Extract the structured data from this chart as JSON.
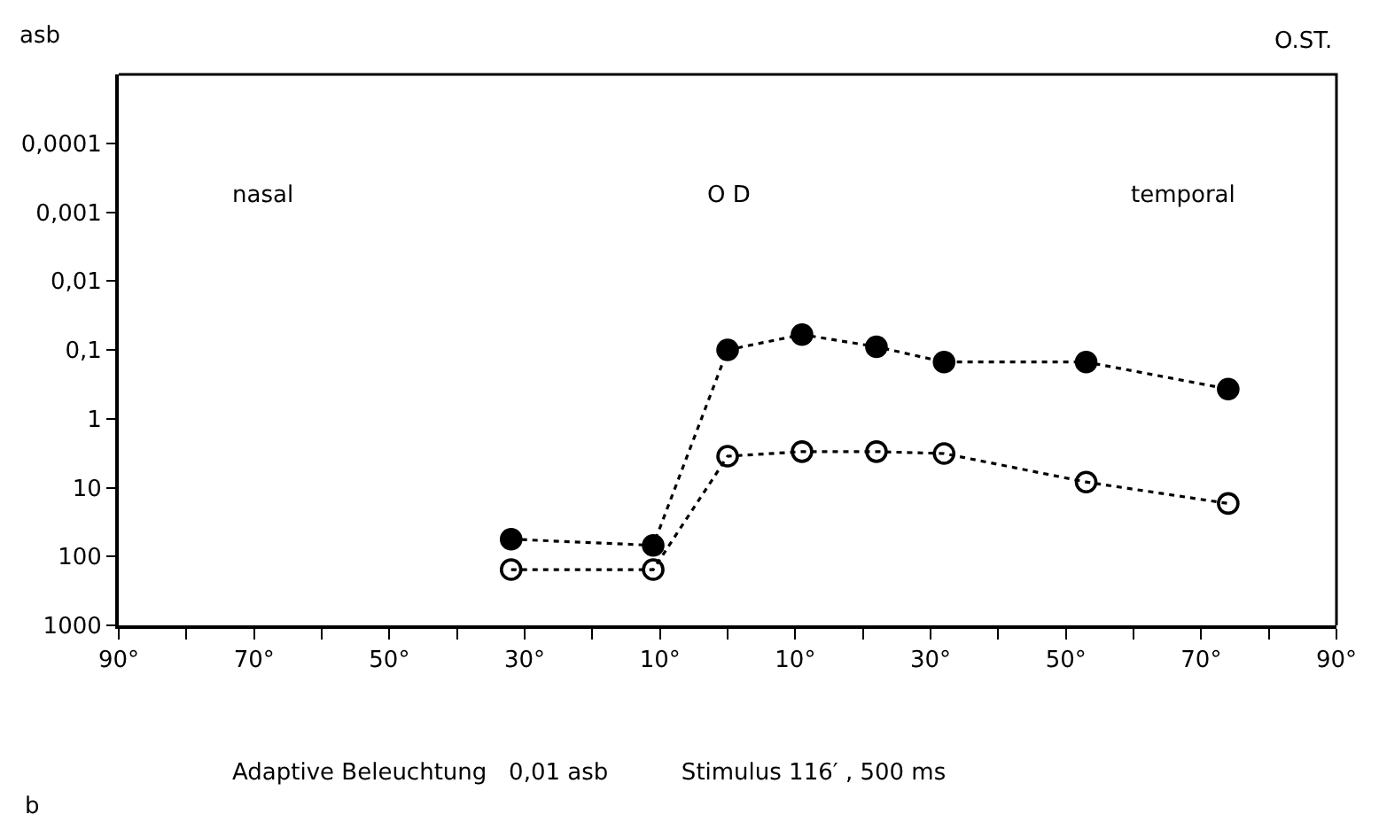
{
  "chart_data": {
    "type": "line",
    "ylabel": "asb",
    "annotations": [
      "O.ST.",
      "nasal",
      "O D",
      "temporal",
      "Adaptive Beleuchtung   0,01 asb          Stimulus 116′ , 500 ms",
      "b"
    ],
    "log": "y",
    "line_style": "dotted",
    "xlim": [
      -90,
      90
    ],
    "xticks": [
      {
        "value": -90,
        "label": "90°"
      },
      {
        "value": -80,
        "label": null
      },
      {
        "value": -70,
        "label": "70°"
      },
      {
        "value": -60,
        "label": null
      },
      {
        "value": -50,
        "label": "50°"
      },
      {
        "value": -40,
        "label": null
      },
      {
        "value": -30,
        "label": "30°"
      },
      {
        "value": -20,
        "label": null
      },
      {
        "value": -10,
        "label": "10°"
      },
      {
        "value": 0,
        "label": null
      },
      {
        "value": 10,
        "label": "10°"
      },
      {
        "value": 20,
        "label": null
      },
      {
        "value": 30,
        "label": "30°"
      },
      {
        "value": 40,
        "label": null
      },
      {
        "value": 50,
        "label": "50°"
      },
      {
        "value": 60,
        "label": null
      },
      {
        "value": 70,
        "label": "70°"
      },
      {
        "value": 80,
        "label": null
      },
      {
        "value": 90,
        "label": "90°"
      }
    ],
    "ylim": [
      1000,
      1e-05
    ],
    "yticks": [
      {
        "value": 0.0001,
        "label": "0,0001"
      },
      {
        "value": 0.001,
        "label": "0,001"
      },
      {
        "value": 0.01,
        "label": "0,01"
      },
      {
        "value": 0.1,
        "label": "0,1"
      },
      1,
      10,
      100,
      1000
    ],
    "x": [
      -32,
      -11,
      0,
      11,
      22,
      32,
      53,
      74
    ],
    "series": [
      {
        "color": "#000000",
        "marker": "circle",
        "values": [
          56,
          69,
          0.1,
          0.06,
          0.09,
          0.15,
          0.15,
          0.37
        ]
      },
      {
        "color": "#000000",
        "marker": "circle-open",
        "values": [
          155,
          155,
          3.5,
          3.0,
          3.0,
          3.2,
          8.3,
          17
        ]
      }
    ]
  }
}
